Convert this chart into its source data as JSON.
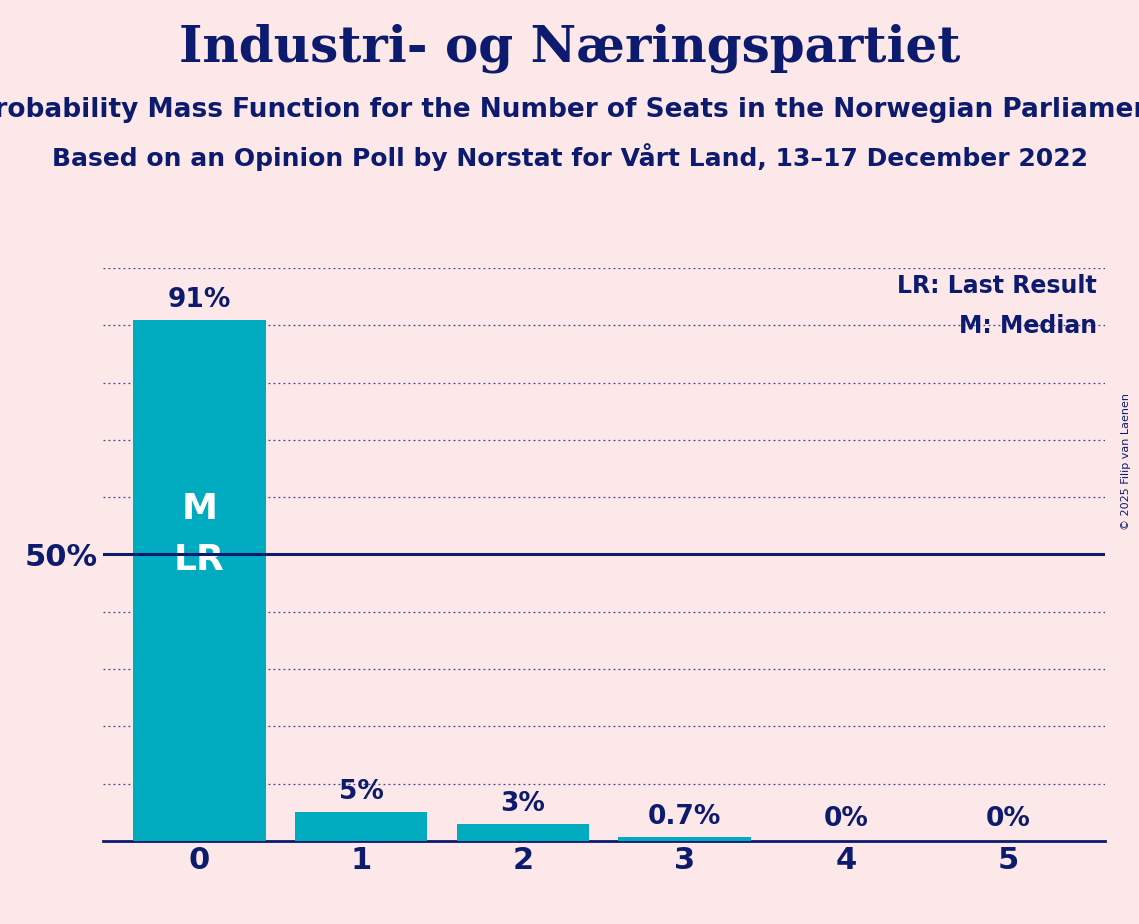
{
  "title": "Industri- og Næringspartiet",
  "subtitle1": "Probability Mass Function for the Number of Seats in the Norwegian Parliament",
  "subtitle2": "Based on an Opinion Poll by Norstat for Vårt Land, 13–17 December 2022",
  "copyright": "© 2025 Filip van Laenen",
  "categories": [
    0,
    1,
    2,
    3,
    4,
    5
  ],
  "values": [
    91.0,
    5.0,
    3.0,
    0.7,
    0.0,
    0.0
  ],
  "bar_color": "#00AABF",
  "background_color": "#fce8e8",
  "text_color": "#0d1b6e",
  "y50_line_color": "#0d1b6e",
  "median": 0,
  "last_result": 0,
  "legend_lr": "LR: Last Result",
  "legend_m": "M: Median",
  "bar_label_fontsize": 19,
  "title_fontsize": 36,
  "subtitle1_fontsize": 19,
  "subtitle2_fontsize": 18,
  "axis_tick_fontsize": 22,
  "ylabel_fontsize": 22,
  "legend_fontsize": 17,
  "inside_label_fontsize": 26,
  "copyright_fontsize": 8
}
